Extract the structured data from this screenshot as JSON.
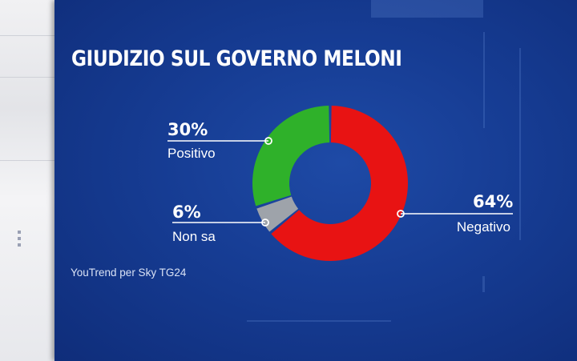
{
  "title": "GIUDIZIO SUL GOVERNO MELONI",
  "source": "YouTrend per Sky TG24",
  "colors": {
    "background": "#163c93",
    "positivo": "#2fb12a",
    "non_sa": "#9ea3aa",
    "negativo": "#e81313",
    "leader": "#ffffff"
  },
  "chart_data": {
    "type": "pie",
    "variant": "donut",
    "title": "GIUDIZIO SUL GOVERNO MELONI",
    "slices": [
      {
        "label": "Negativo",
        "value": 64,
        "display": "64%",
        "color": "#e81313"
      },
      {
        "label": "Non sa",
        "value": 6,
        "display": "6%",
        "color": "#9ea3aa"
      },
      {
        "label": "Positivo",
        "value": 30,
        "display": "30%",
        "color": "#2fb12a"
      }
    ]
  }
}
